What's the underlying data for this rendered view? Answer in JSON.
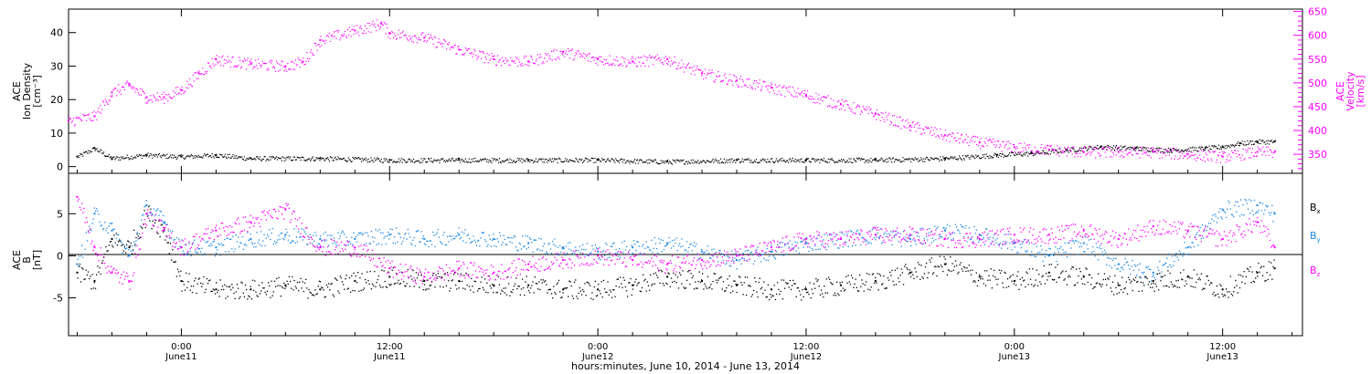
{
  "colors": {
    "density": "#000000",
    "velocity": "#ff00ff",
    "bx": "#000000",
    "by": "#1e88e5",
    "bz": "#ff00ff",
    "axis": "#000000"
  },
  "x_axis": {
    "label": "hours:minutes, June 10, 2014 - June 13, 2014",
    "range_hours": [
      -6.5,
      64.6
    ],
    "ticks": [
      {
        "hour": 0,
        "time": "0:00",
        "date": "June11"
      },
      {
        "hour": 12,
        "time": "12:00",
        "date": "June11"
      },
      {
        "hour": 24,
        "time": "0:00",
        "date": "June12"
      },
      {
        "hour": 36,
        "time": "12:00",
        "date": "June12"
      },
      {
        "hour": 48,
        "time": "0:00",
        "date": "June13"
      },
      {
        "hour": 60,
        "time": "12:00",
        "date": "June13"
      }
    ]
  },
  "panel_top": {
    "left_axis": {
      "title_line1": "ACE",
      "title_line2": "Ion Density",
      "title_line3": "[cm⁻³]",
      "ylim": [
        -2,
        47
      ],
      "ticks": [
        "0",
        "10",
        "20",
        "30",
        "40"
      ]
    },
    "right_axis": {
      "title_line1": "ACE",
      "title_line2": "Velocity",
      "title_line3": "[km/s]",
      "ylim": [
        310,
        655
      ],
      "ticks": [
        "350",
        "400",
        "450",
        "500",
        "550",
        "600",
        "650"
      ]
    }
  },
  "panel_bottom": {
    "left_axis": {
      "title_line1": "ACE",
      "title_line2": "B",
      "title_line3": "[nT]",
      "ylim": [
        -9.5,
        9.8
      ],
      "ticks": [
        "-5",
        "0",
        "5"
      ]
    },
    "legend": [
      {
        "label": "Bx",
        "main": "B",
        "sub": "x",
        "color": "#000000"
      },
      {
        "label": "By",
        "main": "B",
        "sub": "y",
        "color": "#1e88e5"
      },
      {
        "label": "Bz",
        "main": "B",
        "sub": "z",
        "color": "#ff00ff"
      }
    ]
  },
  "chart_data": [
    {
      "type": "scatter",
      "title": "",
      "xlabel": "hours:minutes, June 10, 2014 - June 13, 2014",
      "ylabel": "ACE Ion Density [cm⁻³]",
      "ylim": [
        -2,
        47
      ],
      "series": [
        {
          "name": "Ion Density",
          "color": "#000000",
          "x": [
            -6.0,
            -5.0,
            -4.0,
            -2.0,
            0.0,
            2.0,
            4.0,
            8.0,
            12.0,
            16.0,
            20.0,
            24.0,
            28.0,
            32.0,
            36.0,
            40.0,
            44.0,
            47.0,
            49.0,
            51.0,
            53.0,
            55.0,
            57.0,
            59.0,
            60.0,
            61.0,
            62.0,
            63.0
          ],
          "y": [
            3.0,
            5.5,
            2.5,
            3.5,
            3.0,
            3.5,
            2.5,
            2.5,
            2.0,
            2.0,
            2.0,
            2.0,
            1.5,
            2.0,
            2.0,
            2.0,
            2.5,
            3.5,
            4.0,
            5.0,
            6.0,
            5.5,
            5.0,
            5.5,
            6.0,
            7.0,
            7.5,
            7.5
          ]
        }
      ]
    },
    {
      "type": "scatter",
      "title": "",
      "xlabel": "hours:minutes, June 10, 2014 - June 13, 2014",
      "ylabel": "ACE Velocity [km/s]",
      "ylim": [
        310,
        655
      ],
      "series": [
        {
          "name": "Velocity",
          "color": "#ff00ff",
          "x": [
            -6.5,
            -5.0,
            -4.0,
            -3.0,
            -2.0,
            -1.0,
            0.0,
            1.0,
            2.0,
            4.0,
            6.0,
            7.0,
            8.0,
            10.0,
            11.5,
            12.0,
            14.0,
            16.0,
            18.0,
            20.0,
            22.0,
            24.0,
            26.0,
            28.0,
            30.0,
            32.0,
            34.0,
            36.0,
            38.0,
            40.0,
            42.0,
            44.0,
            46.0,
            48.0,
            50.0,
            52.0,
            54.0,
            56.0,
            58.0,
            60.0,
            62.0,
            63.0
          ],
          "y": [
            420,
            430,
            480,
            495,
            470,
            470,
            485,
            520,
            550,
            540,
            535,
            545,
            590,
            610,
            625,
            605,
            595,
            570,
            550,
            545,
            565,
            550,
            545,
            550,
            520,
            505,
            490,
            475,
            455,
            435,
            410,
            390,
            375,
            365,
            360,
            355,
            355,
            355,
            350,
            345,
            355,
            355
          ]
        }
      ]
    },
    {
      "type": "scatter",
      "title": "",
      "xlabel": "hours:minutes, June 10, 2014 - June 13, 2014",
      "ylabel": "ACE B [nT]",
      "ylim": [
        -9.5,
        9.8
      ],
      "series": [
        {
          "name": "Bx",
          "color": "#000000",
          "x": [
            -6.0,
            -5.0,
            -4.0,
            -3.0,
            -2.0,
            -1.0,
            0.0,
            2.0,
            4.0,
            6.0,
            8.0,
            10.0,
            12.0,
            14.0,
            16.0,
            18.0,
            20.0,
            22.0,
            24.0,
            26.0,
            28.0,
            30.0,
            32.0,
            34.0,
            36.0,
            38.0,
            40.0,
            42.0,
            44.0,
            46.0,
            48.0,
            50.0,
            52.0,
            54.0,
            56.0,
            58.0,
            60.0,
            62.0,
            63.0
          ],
          "y": [
            -2.0,
            -3.0,
            2.0,
            1.0,
            5.0,
            3.0,
            -3.0,
            -4.0,
            -4.0,
            -3.5,
            -4.0,
            -3.0,
            -2.5,
            -3.0,
            -3.0,
            -3.5,
            -3.5,
            -4.0,
            -4.0,
            -3.5,
            -2.5,
            -3.0,
            -3.5,
            -4.0,
            -4.0,
            -3.5,
            -3.0,
            -2.0,
            -1.0,
            -2.5,
            -3.0,
            -2.0,
            -2.5,
            -3.5,
            -3.0,
            -2.5,
            -4.0,
            -2.0,
            -1.5
          ]
        },
        {
          "name": "By",
          "color": "#1e88e5",
          "x": [
            -6.0,
            -5.0,
            -4.0,
            -3.0,
            -2.0,
            -1.0,
            0.0,
            2.0,
            4.0,
            6.0,
            8.0,
            10.0,
            12.0,
            14.0,
            16.0,
            18.0,
            20.0,
            22.0,
            24.0,
            26.0,
            28.0,
            30.0,
            32.0,
            34.0,
            36.0,
            38.0,
            40.0,
            42.0,
            44.0,
            46.0,
            48.0,
            50.0,
            52.0,
            54.0,
            56.0,
            58.0,
            60.0,
            62.0,
            63.0
          ],
          "y": [
            -1.0,
            5.0,
            3.0,
            0.0,
            6.0,
            4.0,
            1.0,
            1.0,
            2.0,
            2.5,
            2.0,
            2.0,
            2.5,
            2.0,
            2.5,
            2.0,
            1.5,
            1.0,
            0.5,
            1.0,
            1.5,
            0.5,
            -0.5,
            0.5,
            1.5,
            2.0,
            2.5,
            2.0,
            3.0,
            2.5,
            1.5,
            0.0,
            1.5,
            -1.0,
            -2.0,
            1.0,
            5.5,
            6.0,
            5.0
          ]
        },
        {
          "name": "Bz",
          "color": "#ff00ff",
          "x": [
            -6.0,
            -5.0,
            -4.0,
            -3.0,
            -2.0,
            -1.0,
            0.0,
            2.0,
            4.0,
            6.0,
            8.0,
            10.0,
            12.0,
            14.0,
            16.0,
            18.0,
            20.0,
            22.0,
            24.0,
            26.0,
            28.0,
            30.0,
            32.0,
            34.0,
            36.0,
            38.0,
            40.0,
            42.0,
            44.0,
            46.0,
            48.0,
            50.0,
            52.0,
            54.0,
            56.0,
            58.0,
            60.0,
            62.0,
            63.0
          ],
          "y": [
            7.0,
            1.0,
            -2.0,
            -3.0,
            5.0,
            3.0,
            1.0,
            3.0,
            4.0,
            5.5,
            1.0,
            1.0,
            -1.5,
            -2.5,
            -1.5,
            -2.0,
            -1.0,
            -0.5,
            0.0,
            -0.5,
            -1.0,
            -0.5,
            0.0,
            1.0,
            2.0,
            2.0,
            2.5,
            2.5,
            2.0,
            2.0,
            2.5,
            2.5,
            3.0,
            2.0,
            3.5,
            3.0,
            2.0,
            4.0,
            1.0
          ]
        }
      ]
    }
  ]
}
